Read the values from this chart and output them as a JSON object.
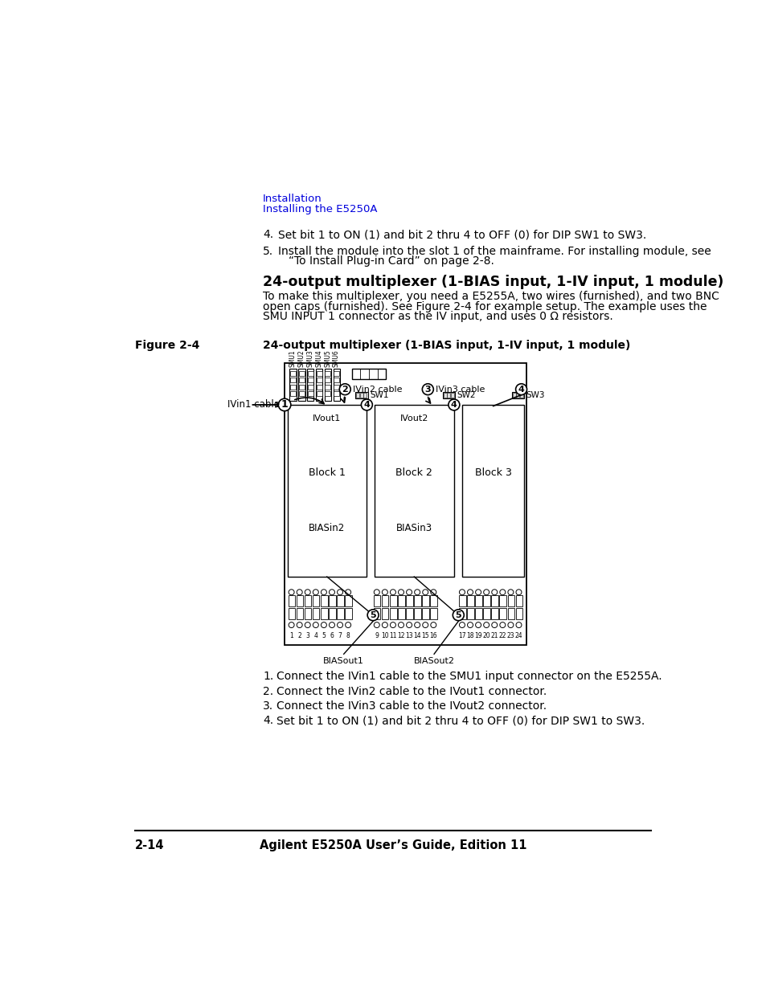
{
  "page_bg": "#ffffff",
  "header_color": "#0000dd",
  "header_line1": "Installation",
  "header_line2": "Installing the E5250A",
  "step4": "Set bit 1 to ON (1) and bit 2 thru 4 to OFF (0) for DIP SW1 to SW3.",
  "step5a": "Install the module into the slot 1 of the mainframe. For installing module, see",
  "step5b": "“To Install Plug-in Card” on page 2-8.",
  "section_title": "24-output multiplexer (1-BIAS input, 1-IV input, 1 module)",
  "section_body_lines": [
    "To make this multiplexer, you need a E5255A, two wires (furnished), and two BNC",
    "open caps (furnished). See Figure 2-4 for example setup. The example uses the",
    "SMU INPUT 1 connector as the IV input, and uses 0 Ω resistors."
  ],
  "figure_label": "Figure 2-4",
  "figure_caption": "24-output multiplexer (1-BIAS input, 1-IV input, 1 module)",
  "list_items": [
    "Connect the IVin1 cable to the SMU1 input connector on the E5255A.",
    "Connect the IVin2 cable to the IVout1 connector.",
    "Connect the IVin3 cable to the IVout2 connector.",
    "Set bit 1 to ON (1) and bit 2 thru 4 to OFF (0) for DIP SW1 to SW3."
  ],
  "footer_left": "2-14",
  "footer_right": "Agilent E5250A User’s Guide, Edition 11"
}
